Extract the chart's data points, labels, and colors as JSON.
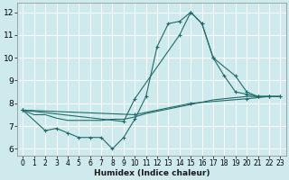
{
  "background_color": "#ceeaed",
  "grid_color": "#ffffff",
  "line_color": "#1e6b6b",
  "xlabel": "Humidex (Indice chaleur)",
  "xlim": [
    -0.5,
    23.5
  ],
  "ylim": [
    5.7,
    12.4
  ],
  "yticks": [
    6,
    7,
    8,
    9,
    10,
    11,
    12
  ],
  "xticks": [
    0,
    1,
    2,
    3,
    4,
    5,
    6,
    7,
    8,
    9,
    10,
    11,
    12,
    13,
    14,
    15,
    16,
    17,
    18,
    19,
    20,
    21,
    22,
    23
  ],
  "lines": [
    {
      "x": [
        0,
        1,
        2,
        3,
        4,
        5,
        6,
        7,
        8,
        9,
        10,
        11,
        12,
        13,
        14,
        15,
        16,
        17,
        18,
        19,
        20,
        21,
        22,
        23
      ],
      "y": [
        7.7,
        7.5,
        7.5,
        7.35,
        7.25,
        7.25,
        7.25,
        7.25,
        7.3,
        7.3,
        7.4,
        7.55,
        7.65,
        7.75,
        7.85,
        7.95,
        8.05,
        8.15,
        8.2,
        8.25,
        8.3,
        8.3,
        8.3,
        8.3
      ],
      "marker": false
    },
    {
      "x": [
        0,
        2,
        3,
        4,
        5,
        6,
        7,
        8,
        9,
        10,
        11,
        12,
        13,
        14,
        15,
        16,
        17,
        18,
        19,
        20,
        21,
        22
      ],
      "y": [
        7.7,
        6.8,
        6.9,
        6.7,
        6.5,
        6.5,
        6.5,
        6.0,
        6.5,
        7.3,
        8.3,
        10.5,
        11.5,
        11.6,
        12.0,
        11.5,
        10.0,
        9.2,
        8.5,
        8.4,
        8.3,
        8.3
      ],
      "marker": true
    },
    {
      "x": [
        0,
        9,
        10,
        14,
        15,
        16,
        17,
        19,
        20,
        21,
        22,
        23
      ],
      "y": [
        7.7,
        7.2,
        8.2,
        11.0,
        12.0,
        11.5,
        10.0,
        9.2,
        8.5,
        8.3,
        8.3,
        8.3
      ],
      "marker": true
    },
    {
      "x": [
        0,
        10,
        15,
        20,
        22,
        23
      ],
      "y": [
        7.7,
        7.5,
        8.0,
        8.2,
        8.3,
        8.3
      ],
      "marker": true
    }
  ]
}
